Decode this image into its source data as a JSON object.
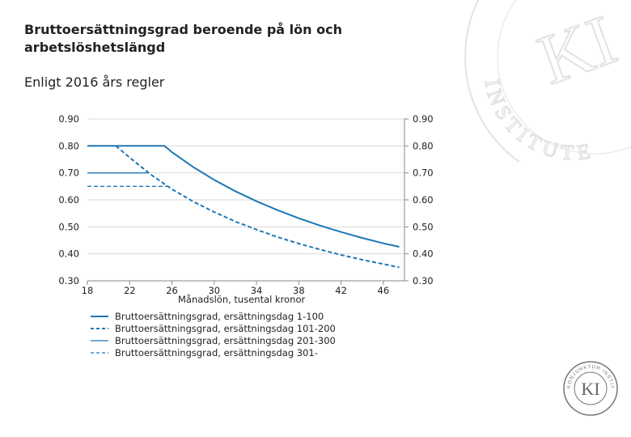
{
  "header": {
    "title": "Bruttoersättningsgrad beroende på lön och arbetslöshetslängd",
    "subtitle": "Enligt 2016 års regler"
  },
  "logo": {
    "letters": "KI",
    "ring_text": "KONJUNKTUR INSTITUTET"
  },
  "watermark": {
    "letters": "KI",
    "ring_text": "INSTITUTET"
  },
  "colors": {
    "series": "#1f77b4",
    "grid": "#d9d9d9",
    "axis": "#888888"
  },
  "chart_data": {
    "type": "line",
    "xlabel": "Månadslön, tusental kronor",
    "ylabel": "",
    "xlim": [
      18,
      48
    ],
    "ylim": [
      0.3,
      0.9
    ],
    "xticks": [
      18,
      22,
      26,
      30,
      34,
      38,
      42,
      46
    ],
    "yticks": [
      "0.90",
      "0.80",
      "0.70",
      "0.60",
      "0.50",
      "0.40",
      "0.30"
    ],
    "grid": "horizontal",
    "legend_position": "bottom",
    "series": [
      {
        "name": "Bruttoersättningsgrad, ersättningsdag 1-100",
        "style": "solid-thick",
        "x": [
          18,
          25.3,
          26,
          28,
          30,
          32,
          34,
          36,
          38,
          40,
          42,
          44,
          46,
          47.5
        ],
        "y": [
          0.8,
          0.8,
          0.777,
          0.722,
          0.674,
          0.632,
          0.595,
          0.562,
          0.532,
          0.505,
          0.481,
          0.459,
          0.439,
          0.426
        ]
      },
      {
        "name": "Bruttoersättningsgrad, ersättningsdag 101-200",
        "style": "dashed-thick",
        "x": [
          20.7,
          22,
          24,
          26,
          28,
          30,
          32,
          34,
          36,
          38,
          40,
          42,
          44,
          46,
          47.5
        ],
        "y": [
          0.8,
          0.757,
          0.694,
          0.64,
          0.594,
          0.555,
          0.52,
          0.49,
          0.462,
          0.438,
          0.416,
          0.396,
          0.378,
          0.362,
          0.35
        ]
      },
      {
        "name": "Bruttoersättningsgrad, ersättningsdag 201-300",
        "style": "solid-thin",
        "x": [
          18,
          23.7
        ],
        "y": [
          0.7,
          0.7
        ]
      },
      {
        "name": "Bruttoersättningsgrad, ersättningsdag 301-",
        "style": "dashed-thin",
        "x": [
          18,
          25.6
        ],
        "y": [
          0.65,
          0.65
        ]
      }
    ]
  }
}
